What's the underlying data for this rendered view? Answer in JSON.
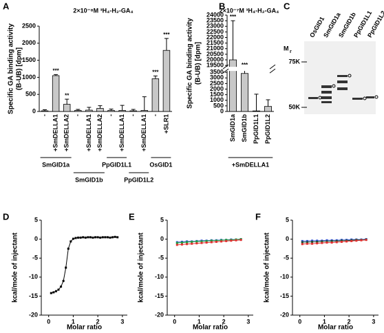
{
  "chart_data": [
    {
      "type": "bar",
      "panel": "A",
      "title": "2×10⁻⁸M  ³H₄-H₂-GA₄",
      "ylabel": [
        "Specific GA binding activity",
        "(B-UB) [dpm]"
      ],
      "groups": [
        {
          "label": "SmGID1a",
          "categories": [
            "-",
            "+SmDELLA1",
            "+SmDELLA2"
          ]
        },
        {
          "label": "SmGID1b",
          "categories": [
            "-",
            "+SmDELLA1",
            "+SmDELLA2"
          ]
        },
        {
          "label": "PpGID1L1",
          "categories": [
            "-",
            "+SmDELLA1"
          ]
        },
        {
          "label": "PpGID1L2",
          "categories": [
            "-",
            "+SmDELLA1"
          ]
        },
        {
          "label": "OsGID1",
          "categories": [
            "-",
            "+SLR1"
          ]
        }
      ],
      "values": [
        20,
        1050,
        210,
        30,
        40,
        90,
        30,
        30,
        20,
        30,
        960,
        1790
      ],
      "errors": [
        30,
        30,
        150,
        30,
        80,
        80,
        40,
        150,
        40,
        400,
        80,
        350
      ],
      "annotations": [
        {
          "index": 1,
          "label": "***"
        },
        {
          "index": 2,
          "label": "**"
        },
        {
          "index": 10,
          "label": "***"
        },
        {
          "index": 11,
          "label": "***"
        }
      ],
      "color": "#c8c8c8",
      "ylim": [
        0,
        2500
      ],
      "yticks": [
        0,
        500,
        1000,
        1500,
        2000,
        2500
      ]
    },
    {
      "type": "bar",
      "panel": "B",
      "title": "2×10⁻⁷M  ³H₄-H₂-GA₄",
      "ylabel": [
        "Specific GA binding activity",
        "(B-UB) [dpm]"
      ],
      "groups": [
        {
          "label": "+SmDELLA1",
          "categories": [
            "SmGID1a",
            "SmGID1b",
            "PpGID1L1",
            "PpGID1L2"
          ]
        }
      ],
      "values": [
        20000,
        3400,
        50,
        450
      ],
      "errors": [
        3500,
        1700,
        1500,
        600
      ],
      "annotations": [
        {
          "index": 0,
          "label": "***"
        },
        {
          "index": 1,
          "label": "***"
        }
      ],
      "color": "#c8c8c8",
      "ylim": [
        0,
        24000
      ],
      "ybreak": [
        3500,
        19500
      ],
      "yticks": [
        0,
        500,
        1000,
        1500,
        2000,
        2500,
        3000,
        3500,
        19500,
        20000,
        20500,
        21000,
        21500,
        22000,
        22500,
        23000,
        23500,
        24000
      ]
    },
    {
      "type": "scatter",
      "panel": "D",
      "xlabel": "Molar ratio",
      "ylabel": "kcal/mole of injectant",
      "x": [
        0.1,
        0.2,
        0.3,
        0.4,
        0.5,
        0.6,
        0.7,
        0.8,
        0.9,
        1.0,
        1.1,
        1.2,
        1.3,
        1.4,
        1.5,
        1.6,
        1.7,
        1.8,
        1.9,
        2.0,
        2.1,
        2.2,
        2.3,
        2.4,
        2.5,
        2.6,
        2.7,
        2.8
      ],
      "series": [
        {
          "color": "#000000",
          "values": [
            -14.2,
            -14.0,
            -13.7,
            -13.3,
            -12.5,
            -11.0,
            -7.5,
            -2.5,
            -0.6,
            0.1,
            0.3,
            0.4,
            0.4,
            0.5,
            0.4,
            0.5,
            0.5,
            0.4,
            0.5,
            0.5,
            0.4,
            0.5,
            0.5,
            0.5,
            0.4,
            0.5,
            0.6,
            0.5
          ]
        }
      ],
      "xlim": [
        -0.3,
        3.2
      ],
      "xticks": [
        0,
        1,
        2,
        3
      ],
      "ylim": [
        -20,
        5
      ],
      "yticks": [
        -20,
        -15,
        -10,
        -5,
        0,
        5
      ]
    },
    {
      "type": "scatter",
      "panel": "E",
      "xlabel": "Molar ratio",
      "ylabel": "kcal/mole of injectant",
      "x": [
        0.1,
        0.3,
        0.5,
        0.7,
        0.9,
        1.1,
        1.3,
        1.5,
        1.7,
        1.9,
        2.1,
        2.3,
        2.5,
        2.7
      ],
      "series": [
        {
          "color": "#3050d0",
          "values": [
            -0.8,
            -0.7,
            -0.6,
            -0.6,
            -0.5,
            -0.4,
            -0.4,
            -0.3,
            -0.3,
            -0.2,
            -0.2,
            -0.1,
            -0.1,
            0
          ]
        },
        {
          "color": "#20a040",
          "values": [
            -1.0,
            -0.9,
            -0.8,
            -0.7,
            -0.6,
            -0.6,
            -0.5,
            -0.4,
            -0.4,
            -0.3,
            -0.2,
            -0.2,
            -0.1,
            0
          ]
        },
        {
          "color": "#e03030",
          "values": [
            -1.5,
            -1.4,
            -1.3,
            -1.2,
            -1.1,
            -1.0,
            -0.9,
            -0.8,
            -0.7,
            -0.6,
            -0.5,
            -0.4,
            -0.3,
            -0.2
          ]
        }
      ],
      "xlim": [
        -0.3,
        3.2
      ],
      "xticks": [
        0,
        1,
        2,
        3
      ],
      "ylim": [
        -20,
        5
      ],
      "yticks": [
        -20,
        -15,
        -10,
        -5,
        0,
        5
      ]
    },
    {
      "type": "scatter",
      "panel": "F",
      "xlabel": "Molar ratio",
      "ylabel": "kcal/mole of injectant",
      "x": [
        0.1,
        0.3,
        0.5,
        0.7,
        0.9,
        1.1,
        1.3,
        1.5,
        1.7,
        1.9,
        2.1,
        2.3,
        2.5,
        2.7
      ],
      "series": [
        {
          "color": "#3050d0",
          "values": [
            -0.5,
            -0.5,
            -0.4,
            -0.4,
            -0.4,
            -0.3,
            -0.3,
            -0.3,
            -0.2,
            -0.2,
            -0.1,
            -0.1,
            -0.1,
            0
          ]
        },
        {
          "color": "#205030",
          "values": [
            -0.8,
            -0.8,
            -0.7,
            -0.7,
            -0.6,
            -0.6,
            -0.5,
            -0.5,
            -0.4,
            -0.4,
            -0.3,
            -0.2,
            -0.2,
            -0.1
          ]
        },
        {
          "color": "#e03030",
          "values": [
            -1.3,
            -1.2,
            -1.2,
            -1.1,
            -1.0,
            -0.9,
            -0.9,
            -0.8,
            -0.7,
            -0.6,
            -0.5,
            -0.4,
            -0.3,
            -0.2
          ]
        }
      ],
      "xlim": [
        -0.3,
        3.2
      ],
      "xticks": [
        0,
        1,
        2,
        3
      ],
      "ylim": [
        -20,
        5
      ],
      "yticks": [
        -20,
        -15,
        -10,
        -5,
        0,
        5
      ]
    }
  ],
  "gel": {
    "panel": "C",
    "lanes": [
      "OsGID1",
      "SmGID1a",
      "SmGID1b",
      "PpGID1L1",
      "PpGID1L2"
    ],
    "mr_label": "M",
    "mr_sub": "r",
    "markers": [
      "75K",
      "50K"
    ]
  }
}
